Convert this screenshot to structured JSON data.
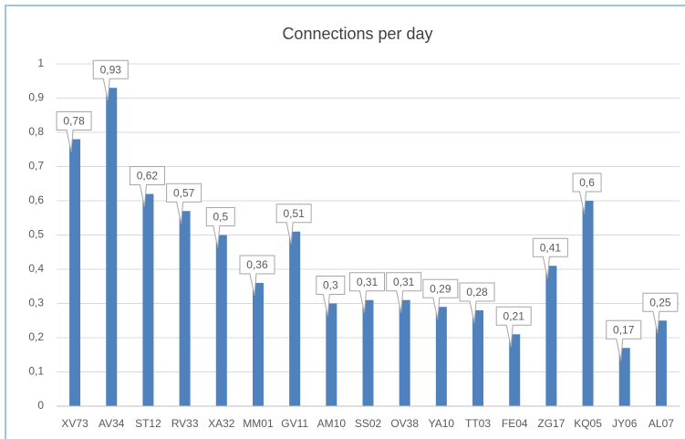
{
  "chart_data": {
    "type": "bar",
    "title": "Connections per day",
    "categories": [
      "XV73",
      "AV34",
      "ST12",
      "RV33",
      "XA32",
      "MM01",
      "GV11",
      "AM10",
      "SS02",
      "OV38",
      "YA10",
      "TT03",
      "FE04",
      "ZG17",
      "KQ05",
      "JY06",
      "AL07"
    ],
    "values": [
      0.78,
      0.93,
      0.62,
      0.57,
      0.5,
      0.36,
      0.51,
      0.3,
      0.31,
      0.31,
      0.29,
      0.28,
      0.21,
      0.41,
      0.6,
      0.17,
      0.25
    ],
    "value_labels": [
      "0,78",
      "0,93",
      "0,62",
      "0,57",
      "0,5",
      "0,36",
      "0,51",
      "0,3",
      "0,31",
      "0,31",
      "0,29",
      "0,28",
      "0,21",
      "0,41",
      "0,6",
      "0,17",
      "0,25"
    ],
    "color": "#4f81bd",
    "ylim": [
      0,
      1
    ],
    "yticks": [
      0,
      {
        "value": 0.1,
        "label": "0,1"
      },
      {
        "value": 0.2,
        "label": "0,2"
      },
      {
        "value": 0.3,
        "label": "0,3"
      },
      {
        "value": 0.4,
        "label": "0,4"
      },
      {
        "value": 0.5,
        "label": "0,5"
      },
      {
        "value": 0.6,
        "label": "0,6"
      },
      {
        "value": 0.7,
        "label": "0,7"
      },
      {
        "value": 0.8,
        "label": "0,8"
      },
      {
        "value": 0.9,
        "label": "0,9"
      },
      1
    ],
    "grid": true
  }
}
